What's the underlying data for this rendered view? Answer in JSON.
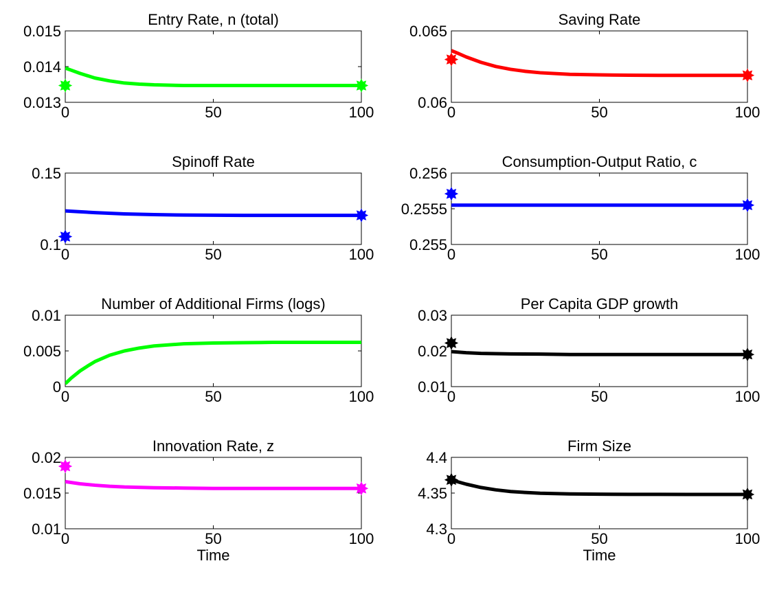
{
  "chart_data": [
    {
      "type": "line",
      "title": "Entry Rate, n (total)",
      "xlabel": "",
      "ylabel": "",
      "xlim": [
        0,
        100
      ],
      "ylim": [
        0.013,
        0.015
      ],
      "xticks": [
        "0",
        "50",
        "100"
      ],
      "yticks": [
        "0.013",
        "0.014",
        "0.015"
      ],
      "color": "#00ff00",
      "series": [
        {
          "x": [
            0,
            2,
            5,
            10,
            15,
            20,
            25,
            30,
            40,
            50,
            60,
            70,
            80,
            90,
            100
          ],
          "values": [
            0.01396,
            0.0139,
            0.01381,
            0.01368,
            0.0136,
            0.01354,
            0.01351,
            0.01349,
            0.01347,
            0.01347,
            0.01347,
            0.01347,
            0.01347,
            0.01347,
            0.01347
          ]
        }
      ],
      "markers": [
        {
          "x": 0,
          "y": 0.01347
        },
        {
          "x": 100,
          "y": 0.01347
        }
      ]
    },
    {
      "type": "line",
      "title": "Saving Rate",
      "xlabel": "",
      "ylabel": "",
      "xlim": [
        0,
        100
      ],
      "ylim": [
        0.06,
        0.065
      ],
      "xticks": [
        "0",
        "50",
        "100"
      ],
      "yticks": [
        "0.06",
        "0.065"
      ],
      "color": "#ff0000",
      "series": [
        {
          "x": [
            0,
            2,
            5,
            10,
            15,
            20,
            25,
            30,
            40,
            50,
            60,
            70,
            80,
            90,
            100
          ],
          "values": [
            0.06362,
            0.06345,
            0.06318,
            0.0628,
            0.06251,
            0.06231,
            0.06217,
            0.06207,
            0.06196,
            0.06192,
            0.0619,
            0.06189,
            0.06189,
            0.06189,
            0.06189
          ]
        }
      ],
      "markers": [
        {
          "x": 0,
          "y": 0.063
        },
        {
          "x": 100,
          "y": 0.06189
        }
      ]
    },
    {
      "type": "line",
      "title": "Spinoff Rate",
      "xlabel": "",
      "ylabel": "",
      "xlim": [
        0,
        100
      ],
      "ylim": [
        0.1,
        0.15
      ],
      "xticks": [
        "0",
        "50",
        "100"
      ],
      "yticks": [
        "0.1",
        "0.15"
      ],
      "color": "#0000ff",
      "series": [
        {
          "x": [
            0,
            5,
            10,
            20,
            30,
            40,
            50,
            60,
            70,
            80,
            90,
            100
          ],
          "values": [
            0.1235,
            0.1229,
            0.1223,
            0.1214,
            0.1209,
            0.1206,
            0.1205,
            0.1204,
            0.1204,
            0.1204,
            0.1204,
            0.1204
          ]
        }
      ],
      "markers": [
        {
          "x": 0,
          "y": 0.1055
        },
        {
          "x": 100,
          "y": 0.1204
        }
      ]
    },
    {
      "type": "line",
      "title": "Consumption-Output Ratio, c",
      "xlabel": "",
      "ylabel": "",
      "xlim": [
        0,
        100
      ],
      "ylim": [
        0.255,
        0.256
      ],
      "xticks": [
        "0",
        "50",
        "100"
      ],
      "yticks": [
        "0.255",
        "0.2555",
        "0.256"
      ],
      "color": "#0000ff",
      "series": [
        {
          "x": [
            0,
            100
          ],
          "values": [
            0.25555,
            0.25555
          ]
        }
      ],
      "markers": [
        {
          "x": 0,
          "y": 0.25571
        },
        {
          "x": 100,
          "y": 0.25555
        }
      ]
    },
    {
      "type": "line",
      "title": "Number of Additional Firms (logs)",
      "xlabel": "",
      "ylabel": "",
      "xlim": [
        0,
        100
      ],
      "ylim": [
        0,
        0.01
      ],
      "xticks": [
        "0",
        "50",
        "100"
      ],
      "yticks": [
        "0",
        "0.005",
        "0.01"
      ],
      "color": "#00ff00",
      "series": [
        {
          "x": [
            0,
            2,
            5,
            8,
            10,
            15,
            20,
            25,
            30,
            40,
            50,
            60,
            70,
            80,
            90,
            100
          ],
          "values": [
            0.0004,
            0.0012,
            0.0022,
            0.003,
            0.0035,
            0.0044,
            0.005,
            0.0054,
            0.0057,
            0.006,
            0.0061,
            0.00615,
            0.0062,
            0.0062,
            0.0062,
            0.0062
          ]
        }
      ],
      "markers": []
    },
    {
      "type": "line",
      "title": "Per Capita GDP growth",
      "xlabel": "",
      "ylabel": "",
      "xlim": [
        0,
        100
      ],
      "ylim": [
        0.01,
        0.03
      ],
      "xticks": [
        "0",
        "50",
        "100"
      ],
      "yticks": [
        "0.01",
        "0.02",
        "0.03"
      ],
      "color": "#000000",
      "series": [
        {
          "x": [
            0,
            5,
            10,
            20,
            30,
            40,
            50,
            60,
            70,
            80,
            90,
            100
          ],
          "values": [
            0.0198,
            0.0195,
            0.0193,
            0.01915,
            0.0191,
            0.019,
            0.019,
            0.019,
            0.019,
            0.019,
            0.019,
            0.019
          ]
        }
      ],
      "markers": [
        {
          "x": 0,
          "y": 0.0222
        },
        {
          "x": 100,
          "y": 0.019
        }
      ]
    },
    {
      "type": "line",
      "title": "Innovation Rate, z",
      "xlabel": "Time",
      "ylabel": "",
      "xlim": [
        0,
        100
      ],
      "ylim": [
        0.01,
        0.02
      ],
      "xticks": [
        "0",
        "50",
        "100"
      ],
      "yticks": [
        "0.01",
        "0.015",
        "0.02"
      ],
      "color": "#ff00ff",
      "series": [
        {
          "x": [
            0,
            5,
            10,
            15,
            20,
            30,
            40,
            50,
            60,
            70,
            80,
            90,
            100
          ],
          "values": [
            0.0166,
            0.0163,
            0.0161,
            0.01595,
            0.01585,
            0.01575,
            0.0157,
            0.01565,
            0.01565,
            0.01565,
            0.01565,
            0.01565,
            0.01565
          ]
        }
      ],
      "markers": [
        {
          "x": 0,
          "y": 0.01875
        },
        {
          "x": 100,
          "y": 0.01565
        }
      ]
    },
    {
      "type": "line",
      "title": "Firm Size",
      "xlabel": "Time",
      "ylabel": "",
      "xlim": [
        0,
        100
      ],
      "ylim": [
        4.3,
        4.4
      ],
      "xticks": [
        "0",
        "50",
        "100"
      ],
      "yticks": [
        "4.3",
        "4.35",
        "4.4"
      ],
      "color": "#000000",
      "series": [
        {
          "x": [
            0,
            2,
            5,
            10,
            15,
            20,
            25,
            30,
            40,
            50,
            60,
            70,
            80,
            90,
            100
          ],
          "values": [
            4.3685,
            4.366,
            4.3625,
            4.3578,
            4.3545,
            4.3522,
            4.3508,
            4.3498,
            4.3488,
            4.3484,
            4.3482,
            4.3482,
            4.3481,
            4.3481,
            4.3481
          ]
        }
      ],
      "markers": [
        {
          "x": 0,
          "y": 4.3685
        },
        {
          "x": 100,
          "y": 4.3481
        }
      ]
    }
  ]
}
